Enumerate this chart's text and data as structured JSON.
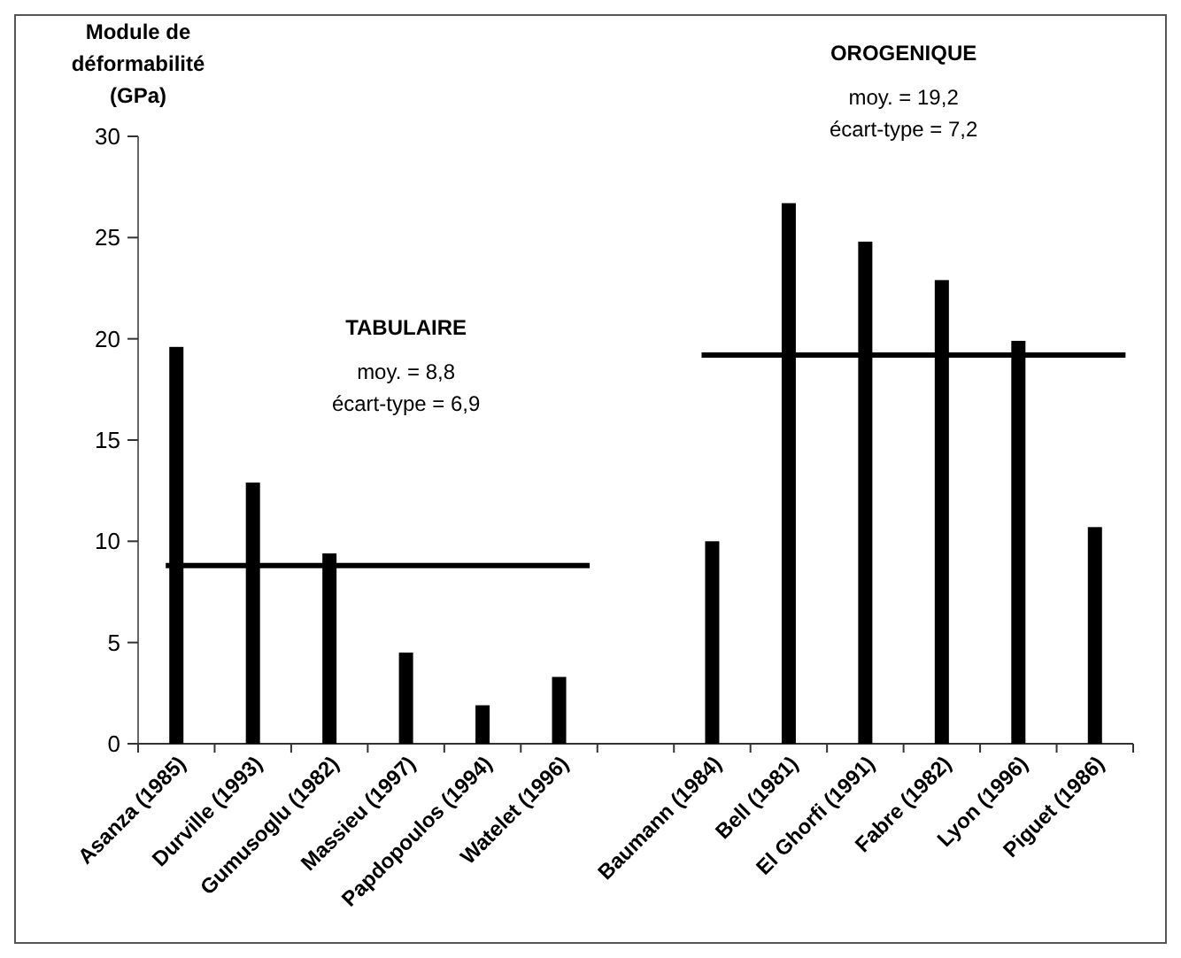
{
  "chart_data": {
    "type": "bar",
    "ylabel": "Module de déformabilité (GPa)",
    "categories": [
      "Asanza (1985)",
      "Durville (1993)",
      "Gumusoglu (1982)",
      "Massieu (1997)",
      "Papdopoulos (1994)",
      "Watelet (1996)",
      null,
      "Baumann (1984)",
      "Bell (1981)",
      "El Ghorfi (1991)",
      "Fabre (1982)",
      "Lyon (1996)",
      "Piguet (1986)"
    ],
    "values": [
      19.6,
      12.9,
      9.4,
      4.5,
      1.9,
      3.3,
      null,
      10.0,
      26.7,
      24.8,
      22.9,
      19.9,
      10.7
    ],
    "color": "#000000",
    "ylim": [
      0,
      30
    ],
    "yticks": [
      0,
      5,
      10,
      15,
      20,
      25,
      30
    ],
    "grid": false,
    "ref_lines": [
      {
        "axis": "y",
        "value": 8.8,
        "color": "#000000"
      },
      {
        "axis": "y",
        "value": 19.2,
        "color": "#000000"
      }
    ],
    "annotations": [
      "TABULAIRE",
      "moy. = 8,8",
      "écart-type = 6,9",
      "OROGENIQUE",
      "moy. = 19,2",
      "écart-type = 7,2"
    ]
  }
}
